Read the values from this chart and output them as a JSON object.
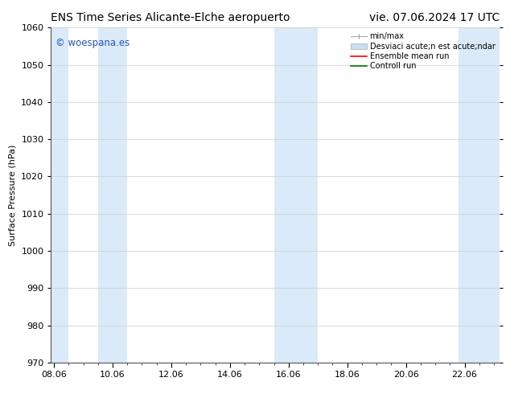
{
  "title_left": "ENS Time Series Alicante-Elche aeropuerto",
  "title_right": "vie. 07.06.2024 17 UTC",
  "ylabel": "Surface Pressure (hPa)",
  "ylim": [
    970,
    1060
  ],
  "yticks": [
    970,
    980,
    990,
    1000,
    1010,
    1020,
    1030,
    1040,
    1050,
    1060
  ],
  "x_labels": [
    "08.06",
    "10.06",
    "12.06",
    "14.06",
    "16.06",
    "18.06",
    "20.06",
    "22.06"
  ],
  "x_positions": [
    0,
    2,
    4,
    6,
    8,
    10,
    12,
    14
  ],
  "xlim": [
    -0.1,
    15.2
  ],
  "watermark": "© woespana.es",
  "watermark_color": "#2255bb",
  "bg_color": "#ffffff",
  "shaded_bands": [
    {
      "x_start": -0.1,
      "x_end": 0.5,
      "color": "#daeaf8"
    },
    {
      "x_start": 1.5,
      "x_end": 2.5,
      "color": "#daeaf8"
    },
    {
      "x_start": 7.5,
      "x_end": 9.0,
      "color": "#daeaf8"
    },
    {
      "x_start": 13.8,
      "x_end": 15.2,
      "color": "#daeaf8"
    }
  ],
  "legend_entries": [
    {
      "label": "min/max",
      "type": "errorbar"
    },
    {
      "label": "Desviaci acute;n est acute;ndar",
      "type": "band"
    },
    {
      "label": "Ensemble mean run",
      "type": "line",
      "color": "#ff0000"
    },
    {
      "label": "Controll run",
      "type": "line",
      "color": "#007700"
    }
  ],
  "title_fontsize": 10,
  "axis_fontsize": 8,
  "tick_fontsize": 8,
  "legend_fontsize": 7
}
